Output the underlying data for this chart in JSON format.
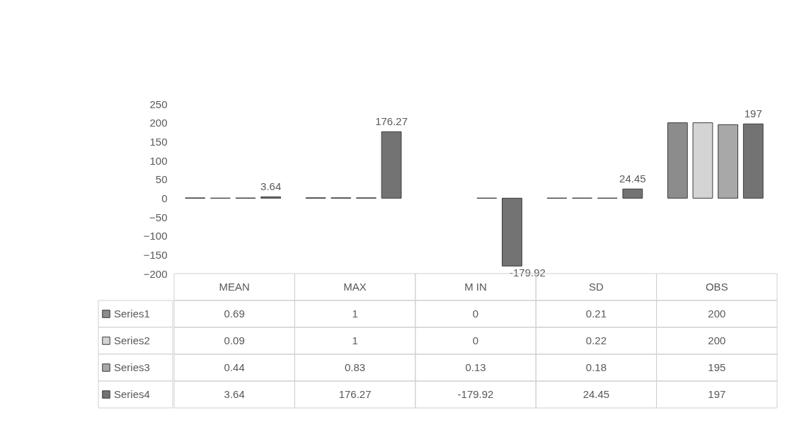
{
  "chart_data": {
    "type": "bar",
    "categories": [
      "MEAN",
      "MAX",
      "M IN",
      "SD",
      "OBS"
    ],
    "series": [
      {
        "name": "Series1",
        "color": "#8c8c8c",
        "values": [
          0.69,
          1,
          0,
          0.21,
          200
        ]
      },
      {
        "name": "Series2",
        "color": "#d4d4d4",
        "values": [
          0.09,
          1,
          0,
          0.22,
          200
        ]
      },
      {
        "name": "Series3",
        "color": "#a8a8a8",
        "values": [
          0.44,
          0.83,
          0.13,
          0.18,
          195
        ]
      },
      {
        "name": "Series4",
        "color": "#737373",
        "values": [
          3.64,
          176.27,
          -179.92,
          24.45,
          197
        ],
        "value_labels": [
          "3.64",
          "176.27",
          "-179.92",
          "24.45",
          "197"
        ]
      }
    ],
    "ylim": [
      -200,
      250
    ],
    "yticks": [
      -200,
      -150,
      -100,
      -50,
      0,
      50,
      100,
      150,
      200,
      250
    ],
    "grid": false,
    "legend": "bottom",
    "data_labels": true
  }
}
